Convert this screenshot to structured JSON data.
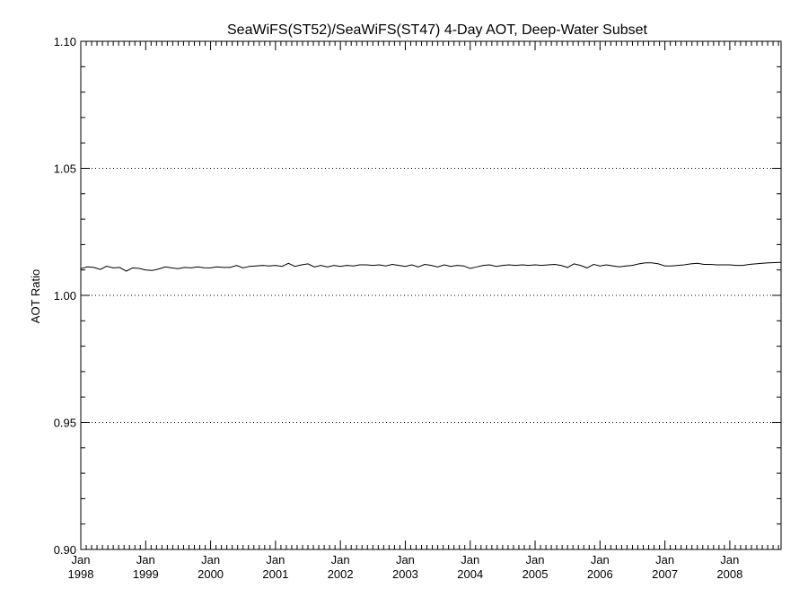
{
  "chart_data": {
    "type": "line",
    "title": "SeaWiFS(ST52)/SeaWiFS(ST47) 4-Day AOT, Deep-Water Subset",
    "ylabel": "AOT Ratio",
    "xlabel": "",
    "ylim": [
      0.9,
      1.1
    ],
    "xlim": [
      1998.0,
      2008.79
    ],
    "y_ticks": [
      "0.90",
      "0.95",
      "1.00",
      "1.05",
      "1.10"
    ],
    "x_ticks": [
      {
        "month": "Jan",
        "year": "1998"
      },
      {
        "month": "Jan",
        "year": "1999"
      },
      {
        "month": "Jan",
        "year": "2000"
      },
      {
        "month": "Jan",
        "year": "2001"
      },
      {
        "month": "Jan",
        "year": "2002"
      },
      {
        "month": "Jan",
        "year": "2003"
      },
      {
        "month": "Jan",
        "year": "2004"
      },
      {
        "month": "Jan",
        "year": "2005"
      },
      {
        "month": "Jan",
        "year": "2006"
      },
      {
        "month": "Jan",
        "year": "2007"
      },
      {
        "month": "Jan",
        "year": "2008"
      }
    ],
    "reference_lines": [
      0.95,
      1.0,
      1.05
    ],
    "grid": "dotted horizontal at 0.95, 1.00, 1.05",
    "series": [
      {
        "x": [
          1998.0,
          1998.1,
          1998.2,
          1998.3,
          1998.4,
          1998.5,
          1998.6,
          1998.7,
          1998.8,
          1998.9,
          1999.0,
          1999.1,
          1999.2,
          1999.3,
          1999.4,
          1999.5,
          1999.6,
          1999.7,
          1999.8,
          1999.9,
          2000.0,
          2000.1,
          2000.2,
          2000.3,
          2000.4,
          2000.5,
          2000.6,
          2000.7,
          2000.8,
          2000.9,
          2001.0,
          2001.1,
          2001.2,
          2001.3,
          2001.4,
          2001.5,
          2001.6,
          2001.7,
          2001.8,
          2001.9,
          2002.0,
          2002.1,
          2002.2,
          2002.3,
          2002.4,
          2002.5,
          2002.6,
          2002.7,
          2002.8,
          2002.9,
          2003.0,
          2003.1,
          2003.2,
          2003.3,
          2003.4,
          2003.5,
          2003.6,
          2003.7,
          2003.8,
          2003.9,
          2004.0,
          2004.1,
          2004.2,
          2004.3,
          2004.4,
          2004.5,
          2004.6,
          2004.7,
          2004.8,
          2004.9,
          2005.0,
          2005.1,
          2005.2,
          2005.3,
          2005.4,
          2005.5,
          2005.6,
          2005.7,
          2005.8,
          2005.9,
          2006.0,
          2006.1,
          2006.2,
          2006.3,
          2006.4,
          2006.5,
          2006.6,
          2006.7,
          2006.8,
          2006.9,
          2007.0,
          2007.1,
          2007.2,
          2007.3,
          2007.4,
          2007.5,
          2007.6,
          2007.7,
          2007.8,
          2007.9,
          2008.0,
          2008.1,
          2008.2,
          2008.3,
          2008.4,
          2008.5,
          2008.6,
          2008.79
        ],
        "y": [
          1.0105,
          1.0112,
          1.011,
          1.0102,
          1.0115,
          1.0108,
          1.011,
          1.0095,
          1.0108,
          1.0106,
          1.01,
          1.0098,
          1.0104,
          1.0112,
          1.0108,
          1.0105,
          1.011,
          1.0108,
          1.0112,
          1.0109,
          1.0108,
          1.0112,
          1.011,
          1.011,
          1.0118,
          1.0108,
          1.0114,
          1.0116,
          1.0118,
          1.0116,
          1.0118,
          1.0114,
          1.0126,
          1.0114,
          1.012,
          1.0124,
          1.0112,
          1.0118,
          1.0112,
          1.0118,
          1.0114,
          1.0118,
          1.0116,
          1.012,
          1.012,
          1.0118,
          1.012,
          1.0116,
          1.0122,
          1.0118,
          1.0114,
          1.012,
          1.0112,
          1.0122,
          1.0118,
          1.0112,
          1.012,
          1.0114,
          1.0118,
          1.0116,
          1.0106,
          1.0112,
          1.0118,
          1.012,
          1.0114,
          1.0118,
          1.012,
          1.0118,
          1.012,
          1.0118,
          1.012,
          1.0118,
          1.012,
          1.0122,
          1.0118,
          1.011,
          1.0124,
          1.0118,
          1.0108,
          1.0122,
          1.0116,
          1.012,
          1.0116,
          1.0112,
          1.0116,
          1.0118,
          1.0124,
          1.0128,
          1.0128,
          1.0124,
          1.0116,
          1.0116,
          1.0118,
          1.012,
          1.0124,
          1.0126,
          1.0122,
          1.0122,
          1.012,
          1.012,
          1.012,
          1.0118,
          1.0118,
          1.0122,
          1.0124,
          1.0126,
          1.0128,
          1.013
        ]
      }
    ]
  }
}
